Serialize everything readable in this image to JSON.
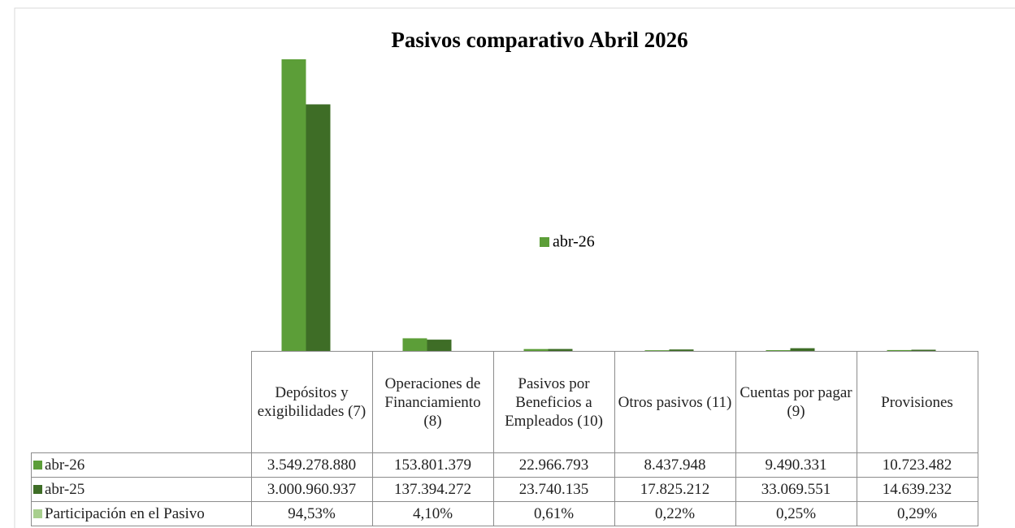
{
  "chart_data": {
    "type": "bar",
    "title": "Pasivos comparativo Abril  2026",
    "categories": [
      "Depósitos y exigibilidades (7)",
      "Operaciones de Financiamiento (8)",
      "Pasivos por Beneficios a Empleados (10)",
      "Otros pasivos (11)",
      "Cuentas por pagar (9)",
      "Provisiones"
    ],
    "series": [
      {
        "name": "abr-26",
        "color": "#5c9e38",
        "values": [
          3549278880,
          153801379,
          22966793,
          8437948,
          9490331,
          10723482
        ],
        "value_labels": [
          "3.549.278.880",
          "153.801.379",
          "22.966.793",
          "8.437.948",
          "9.490.331",
          "10.723.482"
        ]
      },
      {
        "name": "abr-25",
        "color": "#3e6d26",
        "values": [
          3000960937,
          137394272,
          23740135,
          17825212,
          33069551,
          14639232
        ],
        "value_labels": [
          "3.000.960.937",
          "137.394.272",
          "23.740.135",
          "17.825.212",
          "33.069.551",
          "14.639.232"
        ]
      },
      {
        "name": "Participación en el Pasivo",
        "color": "#a8cf8e",
        "values": [
          94.53,
          4.1,
          0.61,
          0.22,
          0.25,
          0.29
        ],
        "value_labels": [
          "94,53%",
          "4,10%",
          "0,61%",
          "0,22%",
          "0,25%",
          "0,29%"
        ]
      }
    ]
  }
}
